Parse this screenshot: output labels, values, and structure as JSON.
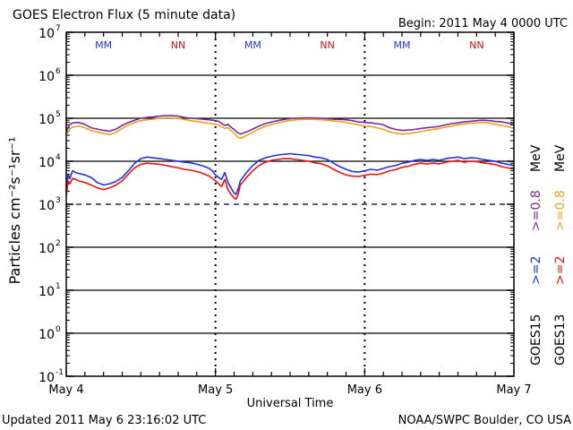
{
  "title": "GOES Electron Flux (5 minute data)",
  "begin_label": "Begin: 2011 May 4 0000 UTC",
  "updated_label": "Updated 2011 May  6 23:16:02 UTC",
  "credit_label": "NOAA/SWPC Boulder, CO USA",
  "colors": {
    "goes15_2mev": "#2233dd",
    "goes15_08mev": "#7a2a9a",
    "goes13_2mev": "#ee1111",
    "goes13_08mev": "#f0a020",
    "m_marker": "#2233dd",
    "n_marker": "#cc1111"
  },
  "chart_data": {
    "type": "line",
    "title": "GOES Electron Flux (5 minute data)",
    "xlabel": "Universal Time",
    "ylabel": "Particles cm⁻²s⁻¹sr⁻¹",
    "x_unit": "hours since 2011 May 4 0000 UTC",
    "xlim": [
      0,
      72
    ],
    "ylim_log10": [
      -1,
      7
    ],
    "yscale": "log",
    "x_ticks": [
      "May 4",
      "May 5",
      "May 6",
      "May 7"
    ],
    "y_ticks": [
      {
        "base": "10",
        "exp": "7"
      },
      {
        "base": "10",
        "exp": "6"
      },
      {
        "base": "10",
        "exp": "5"
      },
      {
        "base": "10",
        "exp": "4"
      },
      {
        "base": "10",
        "exp": "3"
      },
      {
        "base": "10",
        "exp": "2"
      },
      {
        "base": "10",
        "exp": "1"
      },
      {
        "base": "10",
        "exp": "0"
      },
      {
        "base": "10",
        "exp": "-1"
      }
    ],
    "solid_hlines_log10": [
      6,
      5,
      4,
      2,
      1,
      0
    ],
    "dashed_hlines_log10": [
      3
    ],
    "markers": [
      {
        "label": "M",
        "x_hours": 6.0,
        "color": "#2233dd"
      },
      {
        "label": "N",
        "x_hours": 18.0,
        "color": "#cc1111"
      },
      {
        "label": "M",
        "x_hours": 30.0,
        "color": "#2233dd"
      },
      {
        "label": "N",
        "x_hours": 42.0,
        "color": "#cc1111"
      },
      {
        "label": "M",
        "x_hours": 54.0,
        "color": "#2233dd"
      },
      {
        "label": "N",
        "x_hours": 66.0,
        "color": "#cc1111"
      }
    ],
    "series": [
      {
        "name": ">=0.8 MeV",
        "satellite": "GOES15",
        "color": "#7a2a9a",
        "x": [
          0,
          0.5,
          1,
          2,
          3,
          4,
          5,
          6,
          7,
          8,
          9,
          10,
          11,
          12,
          13,
          14,
          15,
          16,
          17,
          18,
          19,
          20,
          21,
          22,
          23,
          24,
          24.5,
          25,
          25.5,
          26,
          26.5,
          27,
          27.5,
          28,
          29,
          30,
          31,
          32,
          33,
          34,
          35,
          36,
          37,
          38,
          39,
          40,
          41,
          42,
          43,
          44,
          45,
          46,
          47,
          48,
          49,
          50,
          51,
          52,
          53,
          54,
          55,
          56,
          57,
          58,
          59,
          60,
          61,
          62,
          63,
          64,
          65,
          66,
          67,
          68,
          69,
          70,
          71,
          72
        ],
        "y": [
          50000,
          70000,
          78000,
          80000,
          72000,
          60000,
          56000,
          52000,
          50000,
          56000,
          68000,
          80000,
          90000,
          100000,
          105000,
          108000,
          112000,
          115000,
          115000,
          112000,
          105000,
          100000,
          98000,
          95000,
          92000,
          88000,
          85000,
          76000,
          68000,
          72000,
          62000,
          55000,
          47000,
          43000,
          48000,
          56000,
          66000,
          75000,
          82000,
          88000,
          94000,
          98000,
          100000,
          101000,
          102000,
          101000,
          100000,
          98000,
          95000,
          94000,
          92000,
          88000,
          82000,
          80000,
          78000,
          75000,
          70000,
          60000,
          55000,
          52000,
          53000,
          55000,
          58000,
          60000,
          62000,
          65000,
          70000,
          75000,
          78000,
          82000,
          85000,
          88000,
          90000,
          88000,
          84000,
          82000,
          78000,
          72000
        ]
      },
      {
        "name": ">=0.8 MeV",
        "satellite": "GOES13",
        "color": "#f0a020",
        "x": [
          0,
          0.5,
          1,
          2,
          3,
          4,
          5,
          6,
          7,
          8,
          9,
          10,
          11,
          12,
          13,
          14,
          15,
          16,
          17,
          18,
          19,
          20,
          21,
          22,
          23,
          24,
          24.5,
          25,
          25.5,
          26,
          26.5,
          27,
          27.5,
          28,
          29,
          30,
          31,
          32,
          33,
          34,
          35,
          36,
          37,
          38,
          39,
          40,
          41,
          42,
          43,
          44,
          45,
          46,
          47,
          48,
          49,
          50,
          51,
          52,
          53,
          54,
          55,
          56,
          57,
          58,
          59,
          60,
          61,
          62,
          63,
          64,
          65,
          66,
          67,
          68,
          69,
          70,
          71,
          72
        ],
        "y": [
          40000,
          55000,
          62000,
          66000,
          60000,
          52000,
          48000,
          44000,
          42000,
          47000,
          58000,
          70000,
          80000,
          88000,
          92000,
          96000,
          100000,
          102000,
          102000,
          100000,
          94000,
          88000,
          84000,
          80000,
          76000,
          72000,
          70000,
          64000,
          58000,
          60000,
          52000,
          45000,
          37000,
          34000,
          40000,
          47000,
          56000,
          65000,
          72000,
          78000,
          84000,
          88000,
          92000,
          94000,
          95000,
          94000,
          92000,
          90000,
          86000,
          84000,
          80000,
          75000,
          70000,
          66000,
          64000,
          60000,
          55000,
          48000,
          45000,
          43000,
          44000,
          46000,
          49000,
          52000,
          55000,
          58000,
          62000,
          66000,
          70000,
          73000,
          76000,
          78000,
          80000,
          77000,
          72000,
          68000,
          64000,
          58000
        ]
      },
      {
        "name": ">=2 MeV",
        "satellite": "GOES15",
        "color": "#2233dd",
        "x": [
          0,
          0.3,
          0.6,
          1,
          1.5,
          2,
          3,
          4,
          5,
          6,
          7,
          8,
          9,
          10,
          11,
          12,
          13,
          14,
          15,
          16,
          17,
          18,
          19,
          20,
          21,
          22,
          23,
          23.5,
          24,
          24.5,
          25,
          25.5,
          26,
          26.5,
          27,
          27.3,
          27.7,
          28,
          29,
          30,
          31,
          32,
          33,
          34,
          35,
          36,
          37,
          38,
          39,
          40,
          41,
          42,
          43,
          44,
          45,
          46,
          47,
          48,
          49,
          50,
          51,
          52,
          53,
          54,
          55,
          56,
          57,
          58,
          59,
          60,
          61,
          62,
          63,
          64,
          65,
          66,
          67,
          68,
          69,
          70,
          71,
          72
        ],
        "y": [
          2500,
          5000,
          4000,
          6000,
          5500,
          5200,
          4800,
          4200,
          3200,
          2800,
          3000,
          3400,
          4200,
          6000,
          9000,
          11500,
          12500,
          12000,
          11500,
          11000,
          10500,
          10000,
          9500,
          9200,
          8500,
          7800,
          6800,
          6000,
          4800,
          4200,
          3800,
          5500,
          3200,
          2400,
          1800,
          1700,
          2400,
          3500,
          5500,
          8000,
          10500,
          12000,
          13000,
          14000,
          14500,
          15000,
          14500,
          14000,
          13500,
          12500,
          12000,
          11000,
          9000,
          7500,
          6500,
          5800,
          5600,
          6000,
          6500,
          6200,
          6800,
          7500,
          8000,
          9000,
          9500,
          10500,
          11000,
          10500,
          11000,
          10500,
          11500,
          12000,
          12500,
          11500,
          12000,
          11800,
          11000,
          10500,
          10000,
          9000,
          8500,
          8000
        ]
      },
      {
        "name": ">=2 MeV",
        "satellite": "GOES13",
        "color": "#ee1111",
        "x": [
          0,
          0.3,
          0.6,
          1,
          1.5,
          2,
          3,
          4,
          5,
          6,
          7,
          8,
          9,
          10,
          11,
          12,
          13,
          14,
          15,
          16,
          17,
          18,
          19,
          20,
          21,
          22,
          23,
          23.5,
          24,
          24.5,
          25,
          25.5,
          26,
          26.5,
          27,
          27.3,
          27.7,
          28,
          29,
          30,
          31,
          32,
          33,
          34,
          35,
          36,
          37,
          38,
          39,
          40,
          41,
          42,
          43,
          44,
          45,
          46,
          47,
          48,
          49,
          50,
          51,
          52,
          53,
          54,
          55,
          56,
          57,
          58,
          59,
          60,
          61,
          62,
          63,
          64,
          65,
          66,
          67,
          68,
          69,
          70,
          71,
          72
        ],
        "y": [
          1500,
          3500,
          3000,
          4000,
          3800,
          3500,
          3200,
          2800,
          2400,
          2200,
          2400,
          2800,
          3500,
          5000,
          7000,
          8500,
          9000,
          8800,
          8500,
          8000,
          7500,
          7000,
          6500,
          6200,
          5800,
          5200,
          4500,
          4000,
          3500,
          3000,
          2600,
          3800,
          2200,
          1700,
          1400,
          1300,
          1800,
          2800,
          4200,
          6000,
          8000,
          9500,
          10500,
          11000,
          11500,
          11500,
          11000,
          10500,
          10000,
          9200,
          8800,
          7800,
          6500,
          5500,
          4800,
          4500,
          4400,
          4700,
          5000,
          4900,
          5300,
          6000,
          6400,
          7200,
          7600,
          8500,
          9000,
          8600,
          9000,
          8700,
          9500,
          10000,
          10500,
          9500,
          10000,
          9800,
          9200,
          8800,
          8400,
          7500,
          7000,
          6500
        ]
      }
    ]
  },
  "legend": {
    "g15_2": ">=2",
    "g15_08": ">=0.8",
    "g13_2": ">=2",
    "g13_08": ">=0.8",
    "mev_1": "MeV",
    "mev_2": "MeV",
    "goes15": "GOES15",
    "goes13": "GOES13"
  }
}
